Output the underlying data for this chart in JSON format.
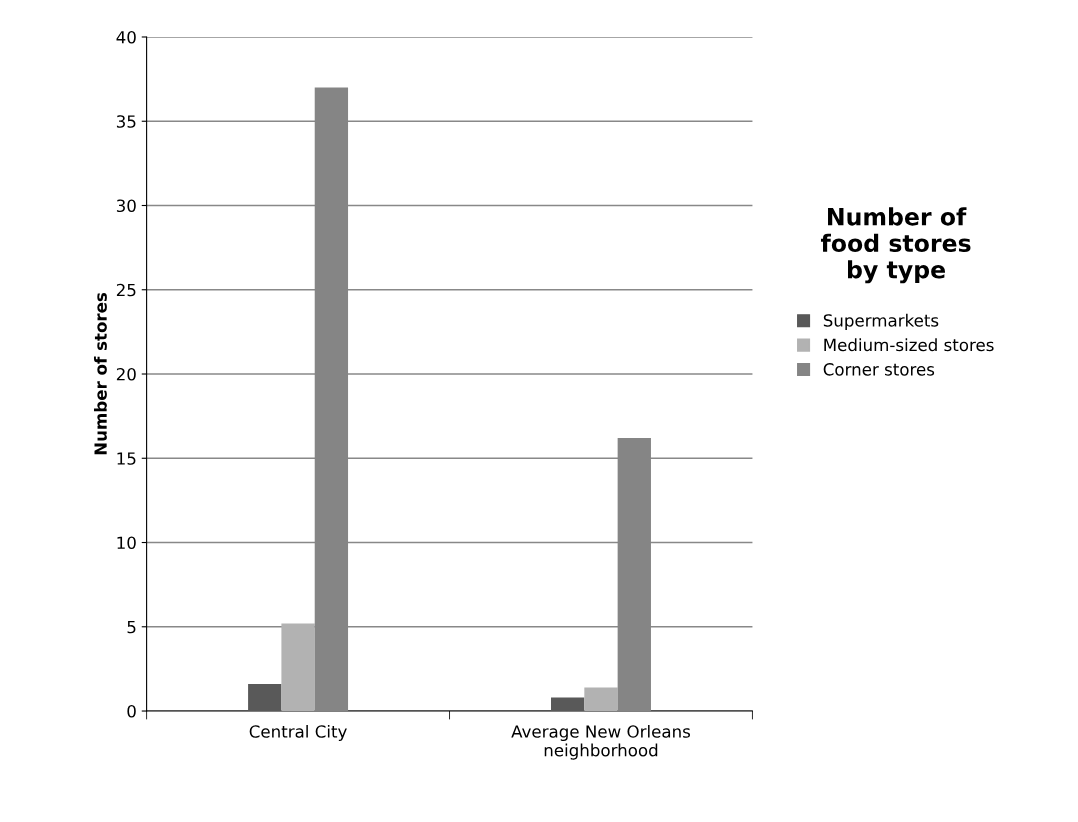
{
  "chart_data": {
    "type": "bar",
    "ylabel": "Number of stores",
    "legend_title": "Number of\nfood stores\nby type",
    "categories": [
      "Central City",
      "Average New Orleans\nneighborhood"
    ],
    "series": [
      {
        "name": "Supermarkets",
        "color": "#595959",
        "values": [
          1.6,
          0.8
        ]
      },
      {
        "name": "Medium-sized stores",
        "color": "#b2b2b2",
        "values": [
          5.2,
          1.4
        ]
      },
      {
        "name": "Corner stores",
        "color": "#858585",
        "values": [
          37,
          16.2
        ]
      }
    ],
    "ylim": [
      0,
      40
    ],
    "yticks": [
      0,
      5,
      10,
      15,
      20,
      25,
      30,
      35,
      40
    ],
    "grid": "y",
    "legend": "right"
  }
}
